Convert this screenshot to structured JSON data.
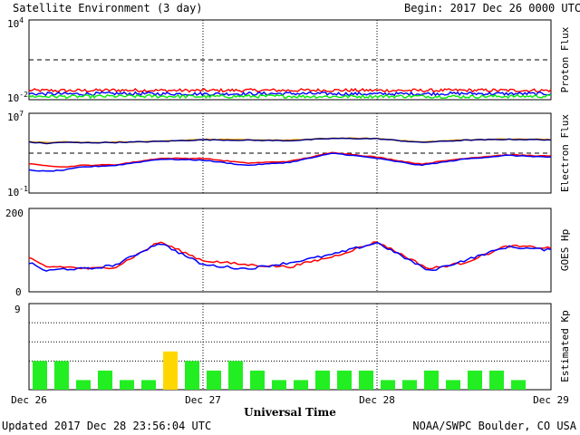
{
  "header": {
    "title": "Satellite Environment (3 day)",
    "begin": "Begin:  2017 Dec 26 0000 UTC"
  },
  "footer": {
    "updated": "Updated 2017 Dec 28 23:56:04 UTC",
    "credit": "NOAA/SWPC Boulder, CO USA"
  },
  "x_axis": {
    "title": "Universal Time",
    "ticks": [
      "Dec 26",
      "Dec 27",
      "Dec 28",
      "Dec 29"
    ]
  },
  "colors": {
    "red": "#ff0000",
    "blue": "#0000ff",
    "green": "#00ee00",
    "orange": "#ffa500",
    "navy": "#000080",
    "kp_quiet": "#22ee22",
    "kp_active": "#ffd700"
  },
  "chart_data": [
    {
      "type": "line",
      "ylabel": "Proton Flux",
      "yscale": "log",
      "ylim": [
        0.01,
        10000
      ],
      "ytick_labels": {
        "base_top": "10",
        "exp_top": "4",
        "base_bottom": "10",
        "exp_bottom": "-2"
      },
      "reference_line": 10,
      "x": [
        0,
        0.25,
        0.5,
        0.75,
        1.0,
        1.25,
        1.5,
        1.75,
        2.0,
        2.25,
        2.5,
        2.75,
        3.0
      ],
      "series": [
        {
          "color": "red",
          "values": [
            0.05,
            0.048,
            0.052,
            0.05,
            0.049,
            0.051,
            0.05,
            0.052,
            0.05,
            0.049,
            0.051,
            0.05,
            0.05
          ]
        },
        {
          "color": "blue",
          "values": [
            0.028,
            0.027,
            0.029,
            0.028,
            0.027,
            0.028,
            0.029,
            0.028,
            0.027,
            0.028,
            0.029,
            0.028,
            0.028
          ]
        },
        {
          "color": "green",
          "values": [
            0.018,
            0.017,
            0.018,
            0.018,
            0.017,
            0.018,
            0.018,
            0.017,
            0.018,
            0.018,
            0.017,
            0.018,
            0.018
          ]
        }
      ]
    },
    {
      "type": "line",
      "ylabel": "Electron Flux",
      "yscale": "log",
      "ylim": [
        0.1,
        10000000
      ],
      "ytick_labels": {
        "base_top": "10",
        "exp_top": "7",
        "base_bottom": "10",
        "exp_bottom": "-1"
      },
      "reference_line": 1000,
      "x": [
        0,
        0.1,
        0.2,
        0.3,
        0.5,
        0.75,
        1.0,
        1.25,
        1.5,
        1.75,
        2.0,
        2.25,
        2.5,
        2.75,
        3.0
      ],
      "series": [
        {
          "color": "orange",
          "values": [
            15000,
            11000,
            14000,
            12000,
            13000,
            16000,
            24000,
            22000,
            20000,
            32000,
            30000,
            13000,
            22000,
            26000,
            24000
          ]
        },
        {
          "color": "navy",
          "values": [
            13000,
            9500,
            12500,
            11000,
            12000,
            15000,
            22000,
            20000,
            18000,
            30000,
            28000,
            12000,
            20000,
            24000,
            22000
          ]
        },
        {
          "color": "red",
          "values": [
            80,
            60,
            40,
            60,
            70,
            300,
            300,
            100,
            150,
            1200,
            400,
            80,
            300,
            700,
            500
          ]
        },
        {
          "color": "blue",
          "values": [
            20,
            15,
            20,
            40,
            60,
            250,
            200,
            60,
            120,
            1000,
            300,
            60,
            250,
            600,
            400
          ]
        }
      ]
    },
    {
      "type": "line",
      "ylabel": "GOES Hp",
      "yscale": "linear",
      "ylim": [
        0,
        200
      ],
      "ytick_labels": {
        "top": "200",
        "bottom": "0"
      },
      "x": [
        0,
        0.1,
        0.2,
        0.35,
        0.5,
        0.75,
        1.0,
        1.25,
        1.5,
        1.75,
        2.0,
        2.3,
        2.5,
        2.75,
        3.0
      ],
      "series": [
        {
          "color": "red",
          "values": [
            80,
            60,
            60,
            55,
            60,
            120,
            75,
            65,
            60,
            85,
            120,
            55,
            70,
            110,
            105
          ]
        },
        {
          "color": "blue",
          "values": [
            70,
            50,
            55,
            55,
            65,
            118,
            65,
            55,
            70,
            90,
            118,
            50,
            75,
            108,
            100
          ]
        }
      ]
    },
    {
      "type": "bar",
      "ylabel": "Estimated Kp",
      "ylim": [
        0,
        9
      ],
      "ytick_labels": {
        "top": "9"
      },
      "x_tick_labels": [
        "Dec 26",
        "Dec 27",
        "Dec 28",
        "Dec 29"
      ],
      "values": [
        3,
        3,
        1,
        2,
        1,
        1,
        4,
        3,
        2,
        3,
        2,
        1,
        1,
        2,
        2,
        2,
        1,
        1,
        2,
        1,
        2,
        2,
        1,
        0
      ]
    }
  ]
}
